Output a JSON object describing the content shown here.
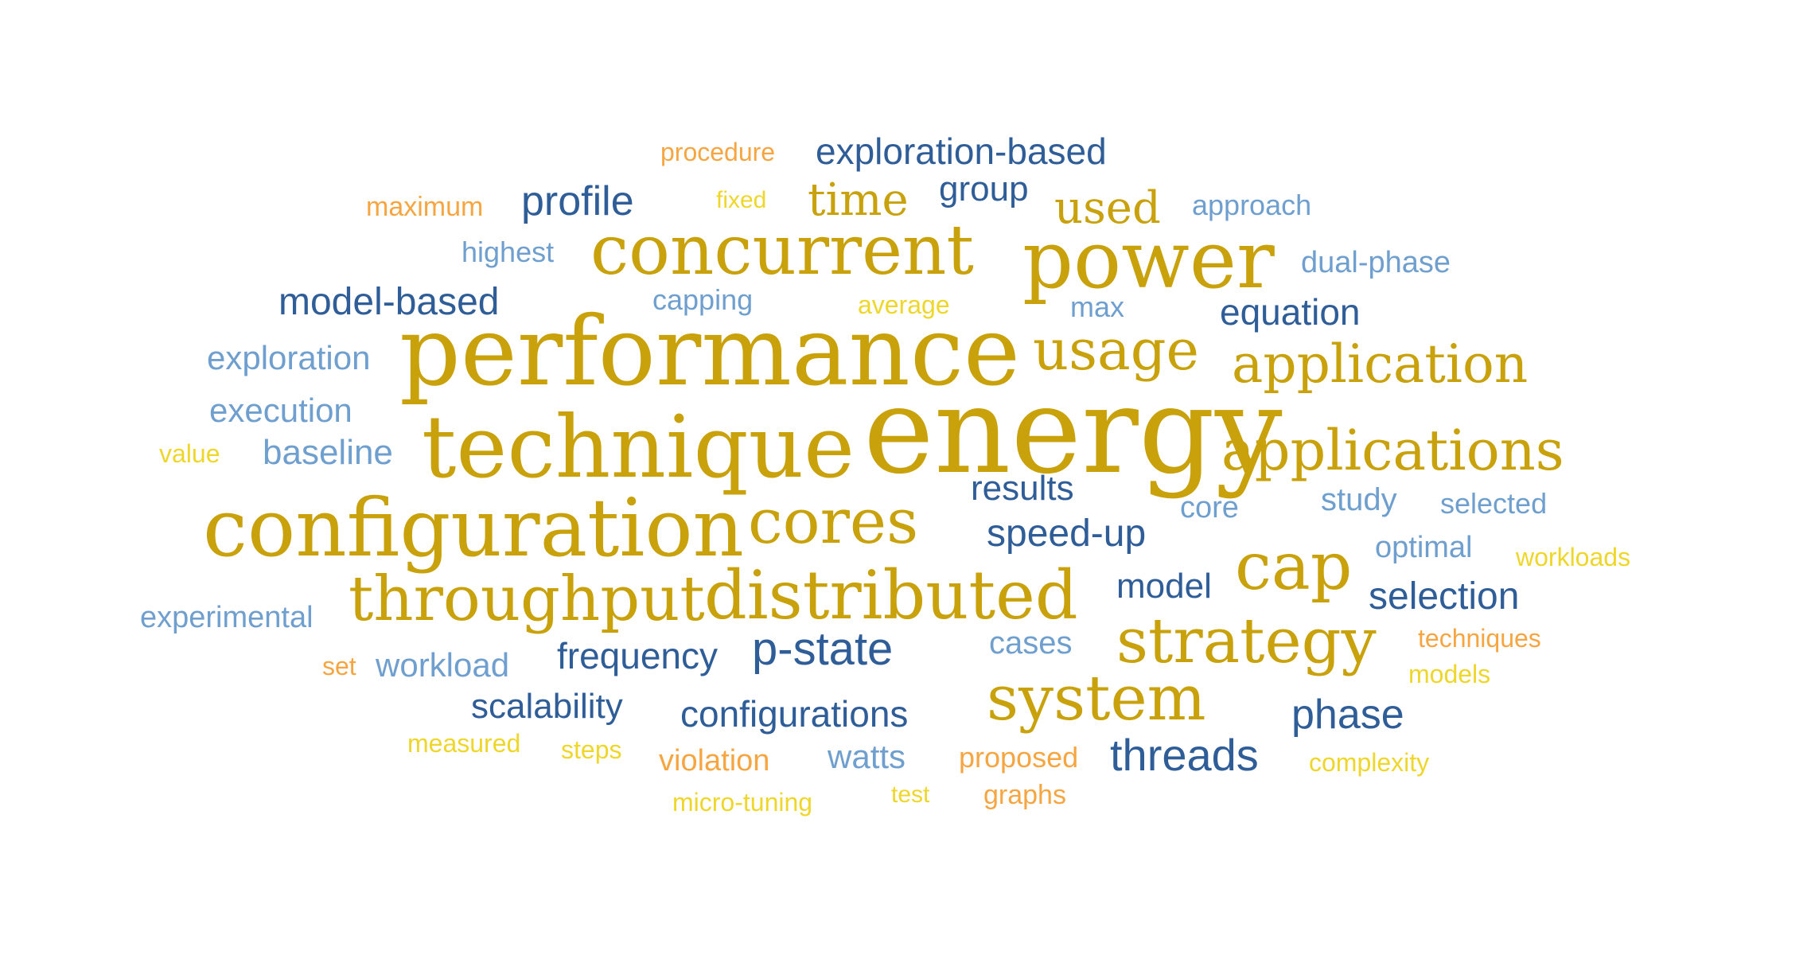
{
  "palette": {
    "gold": "#c8a10b",
    "navy": "#2e5d98",
    "steel": "#6f9fcf",
    "orange": "#f6a540",
    "yellow": "#efd62a"
  },
  "words": [
    {
      "text": "energy",
      "color": "gold"
    },
    {
      "text": "performance",
      "color": "gold"
    },
    {
      "text": "technique",
      "color": "gold"
    },
    {
      "text": "configuration",
      "color": "gold"
    },
    {
      "text": "power",
      "color": "gold"
    },
    {
      "text": "concurrent",
      "color": "gold"
    },
    {
      "text": "distributed",
      "color": "gold"
    },
    {
      "text": "cap",
      "color": "gold"
    },
    {
      "text": "throughput",
      "color": "gold"
    },
    {
      "text": "cores",
      "color": "gold"
    },
    {
      "text": "strategy",
      "color": "gold"
    },
    {
      "text": "system",
      "color": "gold"
    },
    {
      "text": "applications",
      "color": "gold"
    },
    {
      "text": "usage",
      "color": "gold"
    },
    {
      "text": "application",
      "color": "gold"
    },
    {
      "text": "time",
      "color": "gold"
    },
    {
      "text": "used",
      "color": "gold"
    },
    {
      "text": "exploration-based",
      "color": "navy"
    },
    {
      "text": "profile",
      "color": "navy"
    },
    {
      "text": "group",
      "color": "navy"
    },
    {
      "text": "model-based",
      "color": "navy"
    },
    {
      "text": "equation",
      "color": "navy"
    },
    {
      "text": "results",
      "color": "navy"
    },
    {
      "text": "speed-up",
      "color": "navy"
    },
    {
      "text": "model",
      "color": "navy"
    },
    {
      "text": "selection",
      "color": "navy"
    },
    {
      "text": "frequency",
      "color": "navy"
    },
    {
      "text": "p-state",
      "color": "navy"
    },
    {
      "text": "scalability",
      "color": "navy"
    },
    {
      "text": "configurations",
      "color": "navy"
    },
    {
      "text": "phase",
      "color": "navy"
    },
    {
      "text": "threads",
      "color": "navy"
    },
    {
      "text": "approach",
      "color": "steel"
    },
    {
      "text": "highest",
      "color": "steel"
    },
    {
      "text": "dual-phase",
      "color": "steel"
    },
    {
      "text": "capping",
      "color": "steel"
    },
    {
      "text": "max",
      "color": "steel"
    },
    {
      "text": "exploration",
      "color": "steel"
    },
    {
      "text": "execution",
      "color": "steel"
    },
    {
      "text": "baseline",
      "color": "steel"
    },
    {
      "text": "core",
      "color": "steel"
    },
    {
      "text": "study",
      "color": "steel"
    },
    {
      "text": "selected",
      "color": "steel"
    },
    {
      "text": "optimal",
      "color": "steel"
    },
    {
      "text": "experimental",
      "color": "steel"
    },
    {
      "text": "cases",
      "color": "steel"
    },
    {
      "text": "workload",
      "color": "steel"
    },
    {
      "text": "watts",
      "color": "steel"
    },
    {
      "text": "procedure",
      "color": "orange"
    },
    {
      "text": "maximum",
      "color": "orange"
    },
    {
      "text": "techniques",
      "color": "orange"
    },
    {
      "text": "set",
      "color": "orange"
    },
    {
      "text": "violation",
      "color": "orange"
    },
    {
      "text": "proposed",
      "color": "orange"
    },
    {
      "text": "graphs",
      "color": "orange"
    },
    {
      "text": "fixed",
      "color": "yellow"
    },
    {
      "text": "average",
      "color": "yellow"
    },
    {
      "text": "value",
      "color": "yellow"
    },
    {
      "text": "workloads",
      "color": "yellow"
    },
    {
      "text": "models",
      "color": "yellow"
    },
    {
      "text": "measured",
      "color": "yellow"
    },
    {
      "text": "steps",
      "color": "yellow"
    },
    {
      "text": "complexity",
      "color": "yellow"
    },
    {
      "text": "micro-tuning",
      "color": "yellow"
    },
    {
      "text": "test",
      "color": "yellow"
    }
  ]
}
